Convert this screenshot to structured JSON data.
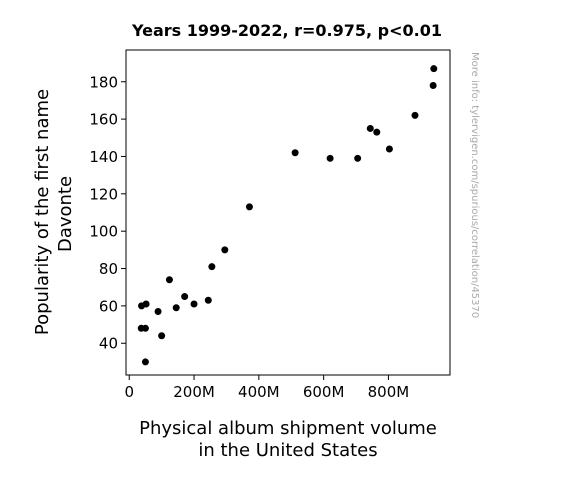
{
  "chart_data": {
    "type": "scatter",
    "title": "Years 1999-2022, r=0.975, p<0.01",
    "xlabel_lines": [
      "Physical album shipment volume",
      "in the United States"
    ],
    "ylabel_lines": [
      "Popularity of the first name",
      "Davonte"
    ],
    "watermark": "More info: tylervigen.com/spurious/correlation/45370",
    "xlim": [
      -10,
      990
    ],
    "ylim": [
      23,
      197
    ],
    "x_ticks": [
      {
        "value": 0,
        "label": "0"
      },
      {
        "value": 200,
        "label": "200M"
      },
      {
        "value": 400,
        "label": "400M"
      },
      {
        "value": 600,
        "label": "600M"
      },
      {
        "value": 800,
        "label": "800M"
      }
    ],
    "y_ticks": [
      {
        "value": 40,
        "label": "40"
      },
      {
        "value": 60,
        "label": "60"
      },
      {
        "value": 80,
        "label": "80"
      },
      {
        "value": 100,
        "label": "100"
      },
      {
        "value": 120,
        "label": "120"
      },
      {
        "value": 140,
        "label": "140"
      },
      {
        "value": 160,
        "label": "160"
      },
      {
        "value": 180,
        "label": "180"
      }
    ],
    "x_unit": "million",
    "grid": false,
    "marker_color": "#000000",
    "points": [
      {
        "x": 940,
        "y": 187
      },
      {
        "x": 938,
        "y": 178
      },
      {
        "x": 882,
        "y": 162
      },
      {
        "x": 803,
        "y": 144
      },
      {
        "x": 764,
        "y": 153
      },
      {
        "x": 744,
        "y": 155
      },
      {
        "x": 705,
        "y": 139
      },
      {
        "x": 620,
        "y": 139
      },
      {
        "x": 512,
        "y": 142
      },
      {
        "x": 371,
        "y": 113
      },
      {
        "x": 295,
        "y": 90
      },
      {
        "x": 255,
        "y": 81
      },
      {
        "x": 244,
        "y": 63
      },
      {
        "x": 200,
        "y": 61
      },
      {
        "x": 171,
        "y": 65
      },
      {
        "x": 145,
        "y": 59
      },
      {
        "x": 124,
        "y": 74
      },
      {
        "x": 100,
        "y": 44
      },
      {
        "x": 89,
        "y": 57
      },
      {
        "x": 52,
        "y": 61
      },
      {
        "x": 38,
        "y": 60
      },
      {
        "x": 50,
        "y": 48
      },
      {
        "x": 37,
        "y": 48
      },
      {
        "x": 50,
        "y": 30
      }
    ]
  }
}
